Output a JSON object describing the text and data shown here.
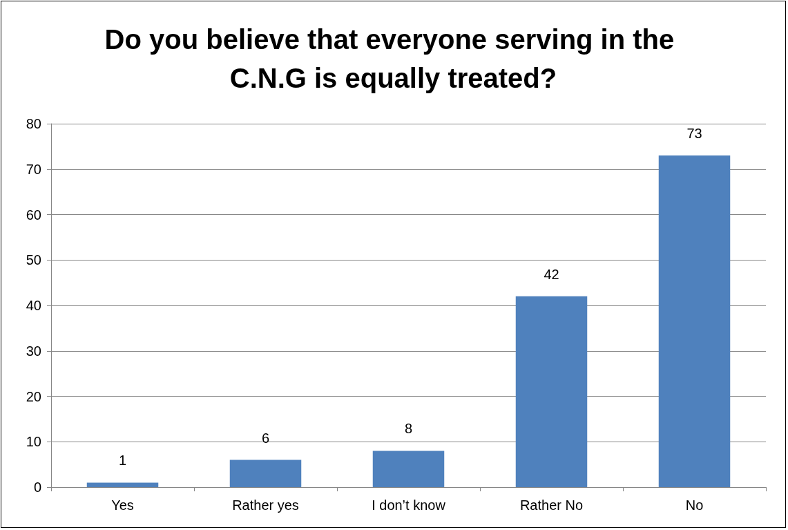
{
  "chart_data": {
    "type": "bar",
    "title": "Do you believe that everyone serving in the C.N.G is equally treated?",
    "categories": [
      "Yes",
      "Rather yes",
      "I don’t know",
      "Rather No",
      "No"
    ],
    "values": [
      1,
      6,
      8,
      42,
      73
    ],
    "color": "#4f81bd",
    "ylim": [
      0,
      80
    ],
    "yticks": [
      0,
      10,
      20,
      30,
      40,
      50,
      60,
      70,
      80
    ],
    "grid": "y",
    "data_labels": true
  }
}
